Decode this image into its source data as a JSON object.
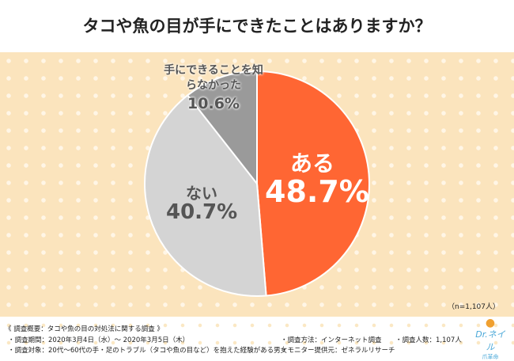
{
  "chart_data": {
    "type": "pie",
    "title": "タコや魚の目が手にできたことはありますか？",
    "slices": [
      {
        "label": "ある",
        "value": 48.7,
        "display": "48.7%",
        "color": "#ff6633"
      },
      {
        "label": "ない",
        "value": 40.7,
        "display": "40.7%",
        "color": "#d4d4d4"
      },
      {
        "label": "手にできることを知らなかった",
        "value": 10.6,
        "display": "10.6%",
        "color": "#9a9a9a"
      }
    ],
    "sample_note": "（n=1,107人）"
  },
  "footer": {
    "heading": "《 調査概要：タコや魚の目の対処法に関する調査 》",
    "period": "・調査期間：2020年3月4日（水）～ 2020年3月5日（木）",
    "target": "・調査対象：20代～60代の手・足のトラブル（タコや魚の目など）を抱えた経験がある男女",
    "method": "・調査方法：インターネット調査",
    "provider": "・モニター提供元：ゼネラルリサーチ",
    "count": "・調査人数：1,107人"
  },
  "logo": {
    "text": "Dr.ネイル",
    "sub": "爪革命"
  }
}
